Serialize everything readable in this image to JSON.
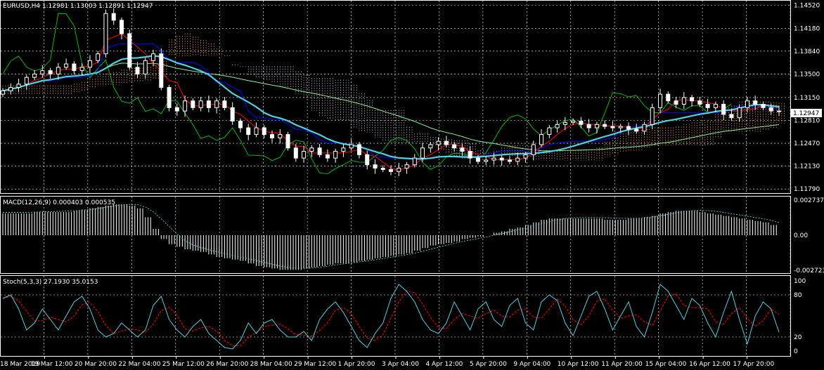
{
  "header": {
    "symbol_line": "EURUSD,H4  1.12981 1.13003 1.12891 1.12947",
    "macd_line": "MACD(12,26,9) 0.000403 0.000535",
    "stoch_line": "Stoch(5,3,3) 27.1930 35.0153"
  },
  "colors": {
    "background": "#000000",
    "grid": "#ffffff",
    "candle_bull": "#ffffff",
    "candle_bear": "#ffffff",
    "tenkan": "#ff0000",
    "kijun": "#0000ff",
    "chikou": "#00c800",
    "senkou_a_cloud": "#f4a460",
    "senkou_b_cloud": "#d8bfd8",
    "ma_fast": "#50d0e0",
    "ma_slow": "#90ee90",
    "macd_hist": "#ffffff",
    "macd_signal": "#50d0e0",
    "stoch_main": "#50d0e0",
    "stoch_signal": "#ff0000",
    "current_price_box": "#ffffff"
  },
  "chart_data": [
    {
      "type": "candlestick",
      "title": "EURUSD,H4",
      "ohlc_last": {
        "open": 1.12981,
        "high": 1.13003,
        "low": 1.12891,
        "close": 1.12947
      },
      "current_price_label": "1.12947",
      "y_ticks": [
        "1.14520",
        "1.14180",
        "1.13840",
        "1.13500",
        "1.13150",
        "1.12810",
        "1.12470",
        "1.12130",
        "1.11790"
      ],
      "ylim": [
        1.1175,
        1.1458
      ],
      "x_ticks": [
        "18 Mar 2019",
        "19 Mar 12:00",
        "20 Mar 20:00",
        "22 Mar 04:00",
        "25 Mar 12:00",
        "26 Mar 20:00",
        "28 Mar 04:00",
        "29 Mar 12:00",
        "1 Apr 20:00",
        "3 Apr 04:00",
        "4 Apr 12:00",
        "5 Apr 20:00",
        "9 Apr 04:00",
        "10 Apr 12:00",
        "11 Apr 20:00",
        "15 Apr 04:00",
        "16 Apr 12:00",
        "17 Apr 20:00"
      ],
      "grid": true,
      "close_path": [
        1.1325,
        1.133,
        1.1335,
        1.1345,
        1.135,
        1.1355,
        1.135,
        1.136,
        1.1365,
        1.1355,
        1.136,
        1.137,
        1.138,
        1.144,
        1.143,
        1.141,
        1.136,
        1.135,
        1.137,
        1.138,
        1.133,
        1.13,
        1.1295,
        1.131,
        1.13,
        1.131,
        1.13,
        1.131,
        1.13,
        1.128,
        1.127,
        1.126,
        1.127,
        1.126,
        1.1255,
        1.126,
        1.124,
        1.1225,
        1.1235,
        1.124,
        1.123,
        1.1225,
        1.1235,
        1.124,
        1.1245,
        1.123,
        1.1215,
        1.121,
        1.1208,
        1.1205,
        1.121,
        1.1215,
        1.1225,
        1.124,
        1.1245,
        1.125,
        1.1245,
        1.124,
        1.1235,
        1.1225,
        1.122,
        1.1222,
        1.1225,
        1.1222,
        1.122,
        1.1225,
        1.123,
        1.1245,
        1.126,
        1.127,
        1.1275,
        1.1278,
        1.128,
        1.1275,
        1.127,
        1.1275,
        1.1272,
        1.127,
        1.1272,
        1.1268,
        1.1265,
        1.1275,
        1.13,
        1.132,
        1.131,
        1.1305,
        1.1315,
        1.131,
        1.1305,
        1.13,
        1.1305,
        1.129,
        1.1285,
        1.13,
        1.131,
        1.1305,
        1.13,
        1.1295,
        1.12947
      ]
    },
    {
      "type": "histogram",
      "title": "MACD(12,26,9)",
      "values_line": "0.000403 0.000535",
      "y_ticks": [
        "0.002737",
        "0.00",
        "-0.002723"
      ],
      "ylim": [
        -0.0029,
        0.0029
      ],
      "hist_path": [
        0.0017,
        0.0017,
        0.0017,
        0.0017,
        0.0018,
        0.0018,
        0.0018,
        0.0018,
        0.0018,
        0.0019,
        0.002,
        0.0021,
        0.0022,
        0.0023,
        0.0024,
        0.0024,
        0.0023,
        0.0021,
        0.0014,
        0.0005,
        -0.0003,
        -0.0007,
        -0.0009,
        -0.0011,
        -0.0012,
        -0.0013,
        -0.0015,
        -0.0017,
        -0.0018,
        -0.0019,
        -0.002,
        -0.0022,
        -0.0024,
        -0.0025,
        -0.0026,
        -0.0027,
        -0.0027,
        -0.0027,
        -0.0026,
        -0.0025,
        -0.0024,
        -0.0023,
        -0.0022,
        -0.0022,
        -0.0021,
        -0.002,
        -0.0019,
        -0.0018,
        -0.0017,
        -0.0016,
        -0.0015,
        -0.0014,
        -0.0012,
        -0.001,
        -0.0008,
        -0.0007,
        -0.0006,
        -0.0005,
        -0.0003,
        -0.0002,
        -0.0001,
        0.0,
        0.0002,
        0.0003,
        0.0005,
        0.0006,
        0.0008,
        0.001,
        0.0012,
        0.0013,
        0.0013,
        0.0013,
        0.0013,
        0.0013,
        0.0013,
        0.0013,
        0.0012,
        0.0012,
        0.0012,
        0.0013,
        0.0013,
        0.0014,
        0.0015,
        0.0017,
        0.0018,
        0.0019,
        0.0019,
        0.0019,
        0.0018,
        0.0017,
        0.0016,
        0.0015,
        0.0014,
        0.0013,
        0.0012,
        0.0011,
        0.001,
        0.0008,
        0.0004
      ]
    },
    {
      "type": "line",
      "title": "Stoch(5,3,3)",
      "values_line": "27.1930 35.0153",
      "y_ticks": [
        "100",
        "80",
        "20",
        "0"
      ],
      "ylim": [
        -5,
        105
      ],
      "main_path": [
        75,
        80,
        60,
        30,
        40,
        60,
        45,
        30,
        50,
        70,
        78,
        60,
        30,
        20,
        25,
        40,
        30,
        20,
        30,
        65,
        78,
        45,
        30,
        20,
        35,
        45,
        25,
        15,
        5,
        3,
        15,
        40,
        25,
        40,
        45,
        30,
        20,
        20,
        28,
        15,
        45,
        60,
        70,
        55,
        35,
        15,
        5,
        25,
        40,
        75,
        95,
        85,
        70,
        45,
        30,
        25,
        40,
        70,
        50,
        30,
        60,
        70,
        45,
        35,
        65,
        75,
        40,
        30,
        70,
        80,
        72,
        40,
        22,
        50,
        78,
        85,
        60,
        30,
        50,
        70,
        35,
        20,
        55,
        95,
        85,
        65,
        45,
        75,
        65,
        40,
        20,
        55,
        85,
        45,
        10,
        50,
        70,
        60,
        27
      ]
    }
  ]
}
